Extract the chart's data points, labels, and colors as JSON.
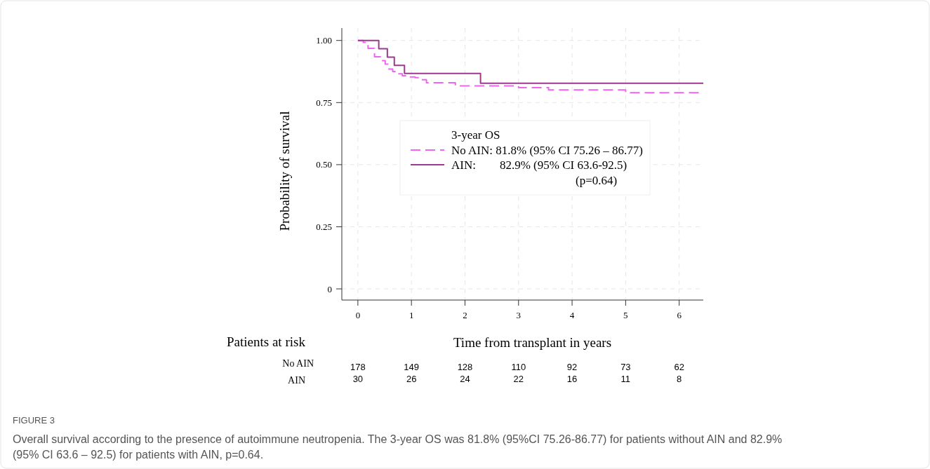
{
  "chart_data": {
    "type": "step",
    "xlabel": "Time from transplant in years",
    "ylabel": "Probability of survival",
    "legend_title": "3-year OS",
    "xlim": [
      -0.3,
      6.45
    ],
    "xticks": [
      0,
      1,
      2,
      3,
      4,
      5,
      6
    ],
    "ylim": [
      -0.045,
      1.05
    ],
    "yticks": [
      {
        "value": 0,
        "label": "0"
      },
      {
        "value": 0.25,
        "label": "0.25"
      },
      {
        "value": 0.5,
        "label": "0.50"
      },
      {
        "value": 0.75,
        "label": "0.75"
      },
      {
        "value": 1,
        "label": "1.00"
      }
    ],
    "grid": true,
    "legend": "right",
    "series": [
      {
        "name": "No AIN: 81.8% (95% CI 75.26 – 86.77)",
        "color": "#f064f0",
        "line_style": "dashed",
        "x": [
          0,
          0.1,
          0.19,
          0.31,
          0.42,
          0.51,
          0.56,
          0.65,
          0.74,
          0.83,
          0.92,
          1.07,
          1.17,
          1.28,
          1.82,
          3.0,
          3.56,
          5.0,
          6.45
        ],
        "values": [
          1.0,
          0.992,
          0.968,
          0.934,
          0.919,
          0.905,
          0.885,
          0.875,
          0.866,
          0.858,
          0.853,
          0.85,
          0.842,
          0.83,
          0.817,
          0.81,
          0.801,
          0.79,
          0.79
        ]
      },
      {
        "name": "AIN:        82.9% (95% CI 63.6-92.5)",
        "color": "#9b3a8f",
        "line_style": "solid",
        "x": [
          0,
          0.39,
          0.55,
          0.68,
          0.87,
          2.29,
          6.45
        ],
        "values": [
          1.0,
          0.967,
          0.933,
          0.9,
          0.867,
          0.828,
          0.828
        ]
      }
    ],
    "annotations": [
      "(p=0.64)",
      "Patients at risk",
      "No AIN",
      "AIN",
      "178",
      "149",
      "128",
      "110",
      "92",
      "73",
      "62",
      "30",
      "26",
      "24",
      "22",
      "16",
      "11",
      "8",
      "FIGURE 3",
      "Overall survival according to the presence of autoimmune neutropenia. The 3-year OS was 81.8% (95%CI 75.26-86.77) for patients without AIN and 82.9% (95% CI 63.6 – 92.5) for patients with AIN, p=0.64."
    ]
  }
}
